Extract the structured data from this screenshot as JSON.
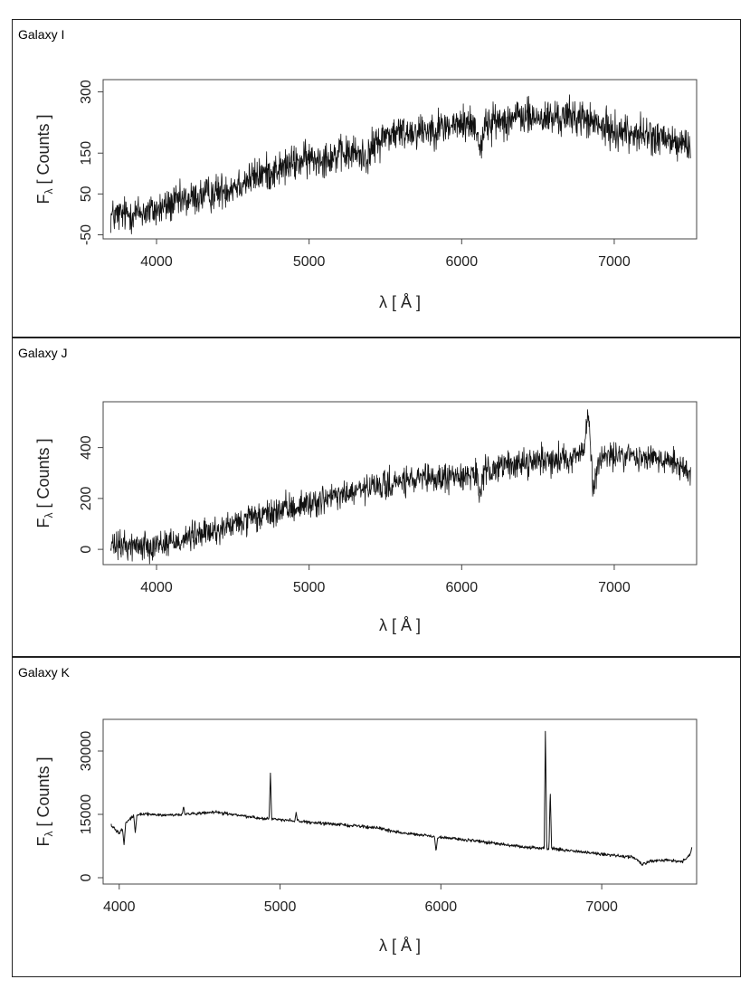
{
  "chart_data": [
    {
      "type": "line",
      "panel_label": "Galaxy I",
      "xlabel": "λ [ Å ]",
      "ylabel": "Fλ [ Counts ]",
      "ylabel_main": "F",
      "ylabel_sub": "λ",
      "ylabel_rest": " [ Counts ]",
      "xlim": [
        3650,
        7540
      ],
      "ylim": [
        -60,
        330
      ],
      "xticks": [
        4000,
        5000,
        6000,
        7000
      ],
      "yticks": [
        -50,
        50,
        150,
        300
      ],
      "x": [
        3700,
        3800,
        3900,
        4000,
        4100,
        4200,
        4300,
        4400,
        4500,
        4600,
        4700,
        4800,
        4900,
        5000,
        5100,
        5200,
        5300,
        5380,
        5420,
        5500,
        5600,
        5700,
        5800,
        5900,
        6000,
        6050,
        6100,
        6120,
        6150,
        6200,
        6300,
        6400,
        6500,
        6600,
        6700,
        6800,
        6900,
        7000,
        7100,
        7200,
        7300,
        7400,
        7500
      ],
      "y": [
        -5,
        0,
        5,
        10,
        25,
        35,
        45,
        55,
        70,
        85,
        100,
        110,
        125,
        135,
        140,
        145,
        150,
        140,
        165,
        195,
        200,
        205,
        210,
        215,
        220,
        225,
        210,
        160,
        215,
        225,
        235,
        240,
        235,
        235,
        240,
        235,
        215,
        205,
        200,
        195,
        185,
        175,
        170
      ],
      "noise": 22,
      "dips": [],
      "peaks": []
    },
    {
      "type": "line",
      "panel_label": "Galaxy J",
      "xlabel": "λ [ Å ]",
      "ylabel": "Fλ [ Counts ]",
      "ylabel_main": "F",
      "ylabel_sub": "λ",
      "ylabel_rest": " [ Counts ]",
      "xlim": [
        3650,
        7540
      ],
      "ylim": [
        -60,
        580
      ],
      "xticks": [
        4000,
        5000,
        6000,
        7000
      ],
      "yticks": [
        0,
        200,
        400
      ],
      "x": [
        3700,
        3800,
        3900,
        4000,
        4100,
        4200,
        4300,
        4400,
        4500,
        4600,
        4700,
        4800,
        4900,
        5000,
        5100,
        5200,
        5300,
        5400,
        5500,
        5600,
        5700,
        5800,
        5900,
        6000,
        6100,
        6120,
        6150,
        6200,
        6300,
        6400,
        6500,
        6600,
        6700,
        6800,
        6830,
        6860,
        6900,
        7000,
        7100,
        7200,
        7300,
        7400,
        7500
      ],
      "y": [
        10,
        15,
        15,
        20,
        30,
        45,
        60,
        75,
        95,
        115,
        130,
        150,
        165,
        180,
        195,
        210,
        225,
        240,
        250,
        265,
        270,
        275,
        280,
        290,
        300,
        200,
        300,
        320,
        330,
        340,
        350,
        355,
        360,
        380,
        540,
        240,
        350,
        370,
        365,
        360,
        355,
        345,
        300
      ],
      "noise": 28,
      "dips": [],
      "peaks": []
    },
    {
      "type": "line",
      "panel_label": "Galaxy K",
      "xlabel": "λ [ Å ]",
      "ylabel": "Fλ [ Counts ]",
      "ylabel_main": "F",
      "ylabel_sub": "λ",
      "ylabel_rest": " [ Counts ]",
      "xlim": [
        3900,
        7590
      ],
      "ylim": [
        -1500,
        37500
      ],
      "xticks": [
        4000,
        5000,
        6000,
        7000
      ],
      "yticks": [
        0,
        15000,
        30000
      ],
      "x": [
        3950,
        4000,
        4050,
        4100,
        4200,
        4300,
        4400,
        4500,
        4600,
        4700,
        4800,
        4900,
        5000,
        5100,
        5200,
        5300,
        5400,
        5500,
        5600,
        5700,
        5800,
        5900,
        6000,
        6100,
        6200,
        6300,
        6400,
        6500,
        6600,
        6700,
        6800,
        6900,
        7000,
        7100,
        7200,
        7250,
        7300,
        7400,
        7500,
        7560
      ],
      "y": [
        12500,
        10500,
        13500,
        15000,
        15000,
        14800,
        15000,
        15200,
        15500,
        15000,
        14500,
        14000,
        13800,
        13500,
        13000,
        12800,
        12500,
        12200,
        11800,
        11000,
        10500,
        10000,
        9500,
        9200,
        8800,
        8300,
        7800,
        7300,
        7000,
        6900,
        6400,
        6000,
        5600,
        5200,
        4800,
        3200,
        4000,
        4200,
        3800,
        5800
      ],
      "noise": 180,
      "dips": [
        [
          4030,
          7800
        ],
        [
          4100,
          10500
        ],
        [
          5970,
          6200
        ],
        [
          6810,
          6600
        ]
      ],
      "peaks": [
        [
          4940,
          25000
        ],
        [
          5100,
          15500
        ],
        [
          4400,
          17000
        ],
        [
          6650,
          35500
        ],
        [
          6680,
          21000
        ],
        [
          6810,
          8800
        ],
        [
          7560,
          7200
        ]
      ]
    }
  ]
}
